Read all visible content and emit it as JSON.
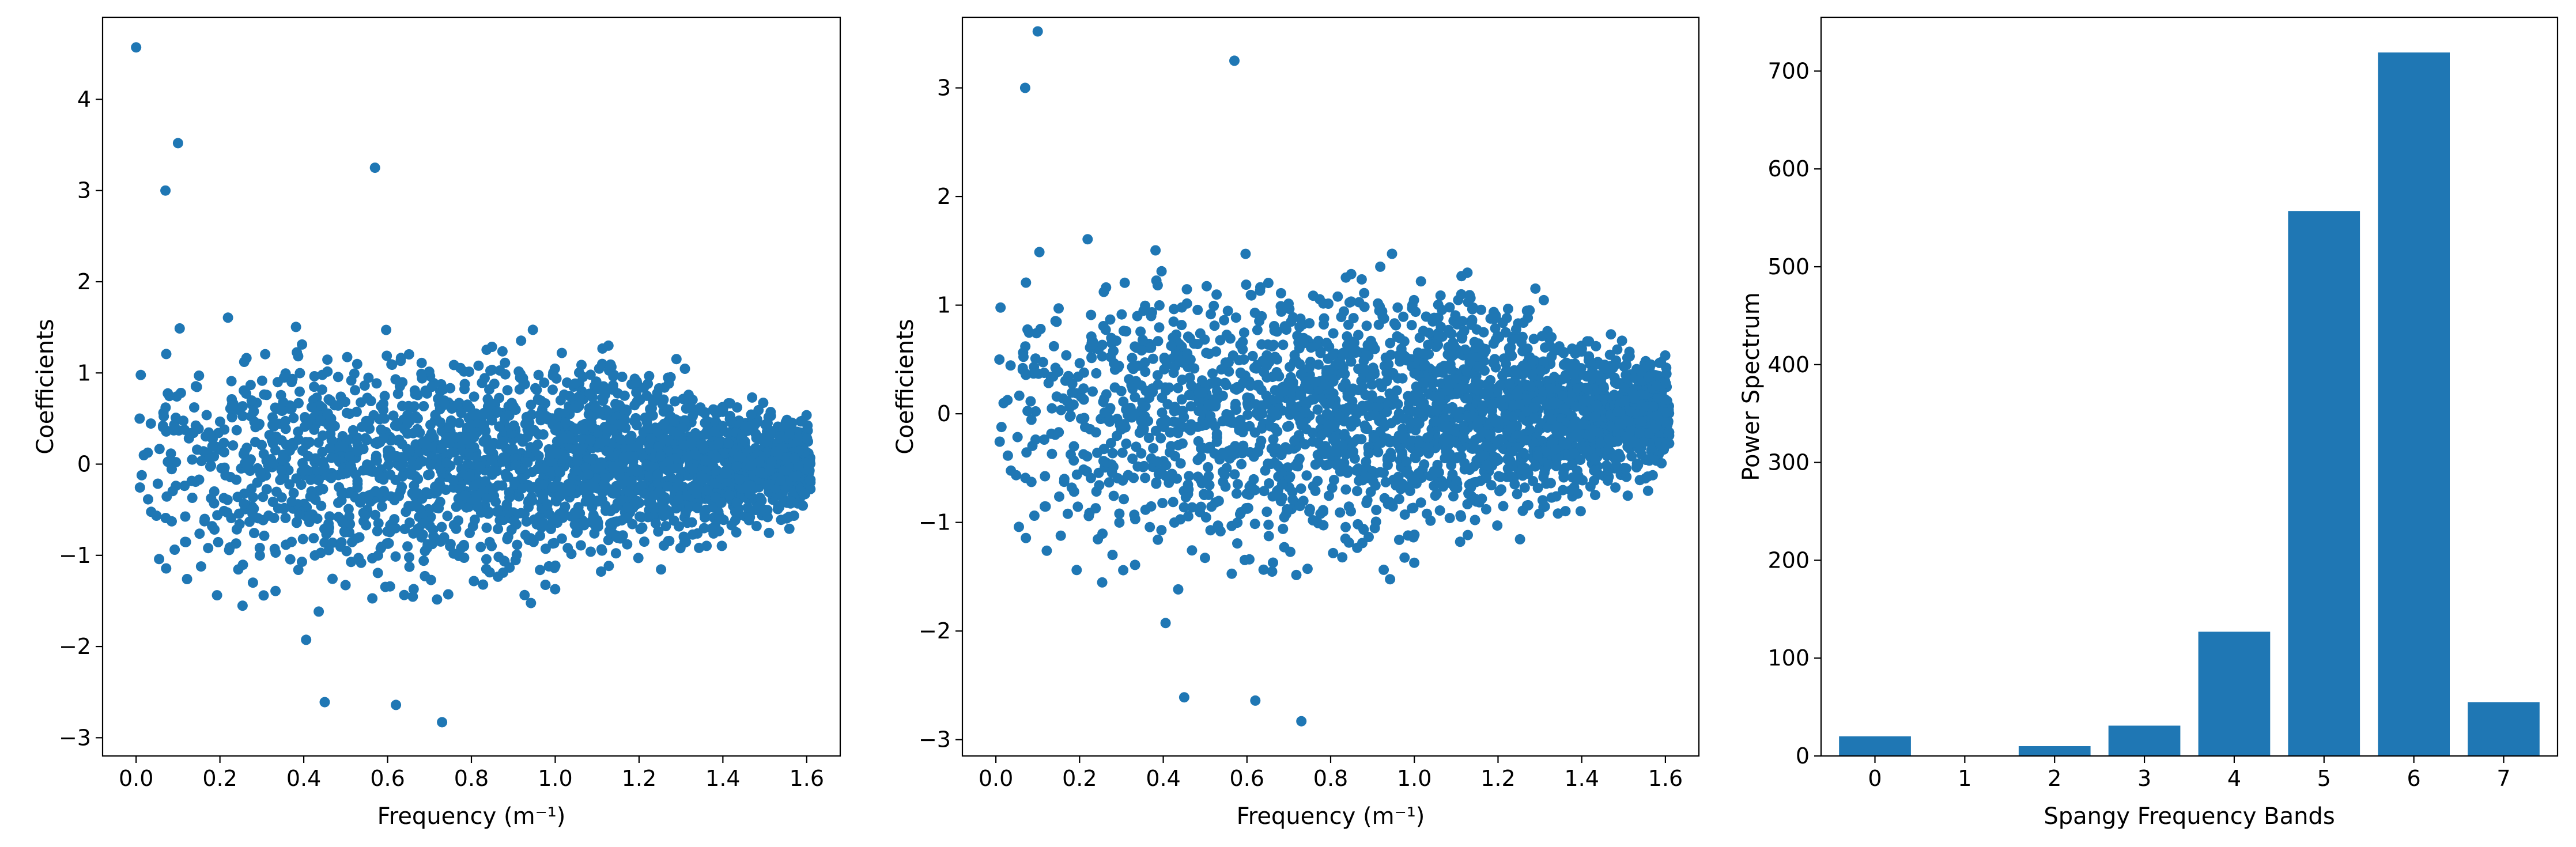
{
  "chart_data": [
    {
      "type": "scatter",
      "title": "",
      "xlabel": "Frequency (m⁻¹)",
      "ylabel": "Coefficients",
      "xlim": [
        -0.08,
        1.68
      ],
      "ylim": [
        -3.2,
        4.9
      ],
      "xticks": [
        "0.0",
        "0.2",
        "0.4",
        "0.6",
        "0.8",
        "1.0",
        "1.2",
        "1.4",
        "1.6"
      ],
      "yticks": [
        "−3",
        "−2",
        "−1",
        "0",
        "1",
        "2",
        "3",
        "4"
      ],
      "color": "#1f77b4",
      "notable_points": [
        [
          0.0,
          4.57
        ],
        [
          0.07,
          3.0
        ],
        [
          0.1,
          3.52
        ],
        [
          0.57,
          3.25
        ],
        [
          0.73,
          -2.83
        ],
        [
          0.62,
          -2.64
        ],
        [
          0.45,
          -2.61
        ]
      ],
      "cloud": {
        "x_range": [
          0.0,
          1.61
        ],
        "center": 0.0,
        "n_points": 2600
      }
    },
    {
      "type": "scatter",
      "title": "",
      "xlabel": "Frequency (m⁻¹)",
      "ylabel": "Coefficients",
      "xlim": [
        -0.08,
        1.68
      ],
      "ylim": [
        -3.15,
        3.65
      ],
      "xticks": [
        "0.0",
        "0.2",
        "0.4",
        "0.6",
        "0.8",
        "1.0",
        "1.2",
        "1.4",
        "1.6"
      ],
      "yticks": [
        "−3",
        "−2",
        "−1",
        "0",
        "1",
        "2",
        "3"
      ],
      "color": "#1f77b4",
      "notable_points": [
        [
          0.07,
          3.0
        ],
        [
          0.1,
          3.52
        ],
        [
          0.57,
          3.25
        ],
        [
          0.73,
          -2.83
        ],
        [
          0.62,
          -2.64
        ],
        [
          0.45,
          -2.61
        ]
      ],
      "cloud": {
        "x_range": [
          0.0,
          1.61
        ],
        "center": 0.0,
        "n_points": 2600
      }
    },
    {
      "type": "bar",
      "title": "",
      "xlabel": "Spangy Frequency Bands",
      "ylabel": "Power Spectrum",
      "categories": [
        "0",
        "1",
        "2",
        "3",
        "4",
        "5",
        "6",
        "7"
      ],
      "values": [
        20,
        0,
        10,
        31,
        127,
        557,
        719,
        55
      ],
      "ylim": [
        0,
        755
      ],
      "yticks": [
        "0",
        "100",
        "200",
        "300",
        "400",
        "500",
        "600",
        "700"
      ],
      "color": "#1f77b4"
    }
  ]
}
